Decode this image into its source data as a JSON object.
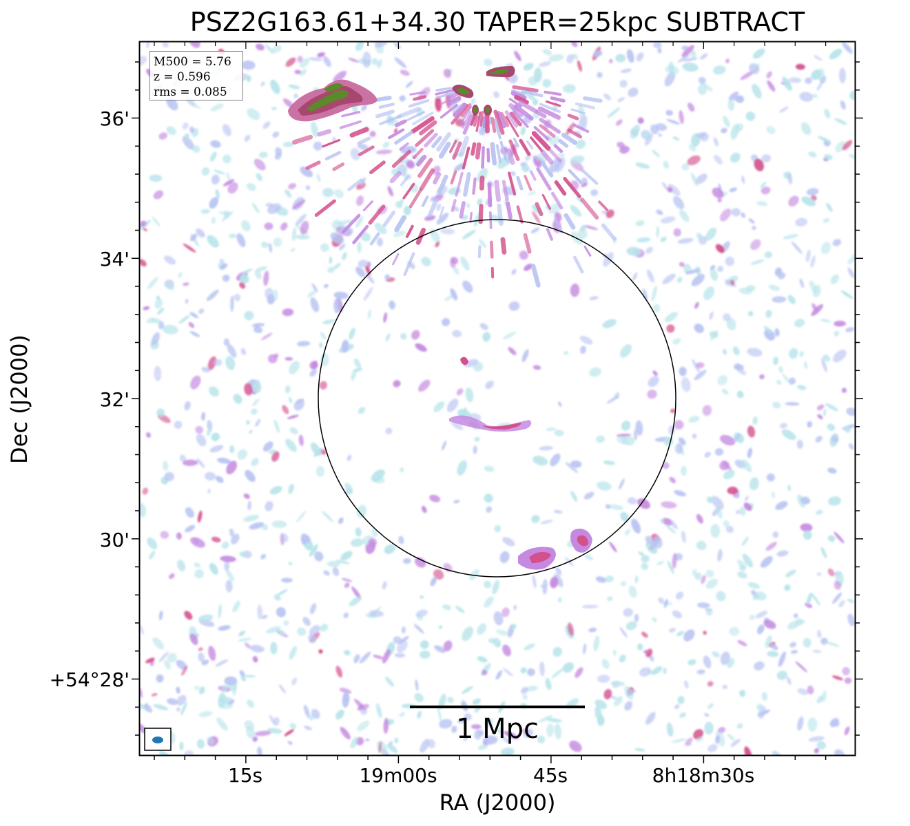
{
  "title": "PSZ2G163.61+34.30 TAPER=25kpc SUBTRACT",
  "axes": {
    "xlabel": "RA (J2000)",
    "ylabel": "Dec (J2000)",
    "x_ticks": [
      "15s",
      "19m00s",
      "45s",
      "8h18m30s"
    ],
    "y_ticks": [
      "36'",
      "34'",
      "32'",
      "30'",
      "+54°28'"
    ]
  },
  "info": {
    "m500": "M500 = 5.76",
    "z": "z = 0.596",
    "rms": "rms = 0.085"
  },
  "scalebar": {
    "label": "1 Mpc"
  },
  "colors": {
    "faint": "#b8e4ea",
    "low": "#b9c4f2",
    "mid": "#c58ae0",
    "high": "#d4508c",
    "peak": "#5a8a2a",
    "beam": "#1f77b4"
  }
}
